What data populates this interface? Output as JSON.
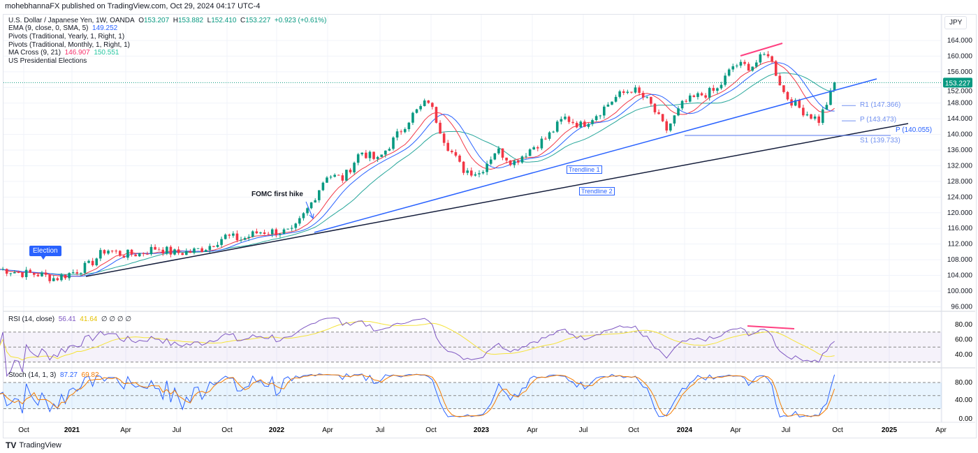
{
  "header": {
    "published": "mohebhannaFX published on TradingView.com, Oct 29, 2024 04:17 UTC-4"
  },
  "legend": {
    "symbol": "U.S. Dollar / Japanese Yen, 1W, OANDA",
    "o_label": "O",
    "o": "153.207",
    "h_label": "H",
    "h": "153.882",
    "l_label": "L",
    "l": "152.410",
    "c_label": "C",
    "c": "153.227",
    "change": "+0.923 (+0.61%)",
    "ema": "EMA (9, close, 0, SMA, 5)",
    "ema_val": "149.252",
    "pivots_yearly": "Pivots (Traditional, Yearly, 1, Right, 1)",
    "pivots_monthly": "Pivots (Traditional, Monthly, 1, Right, 1)",
    "ma_cross": "MA Cross (9, 21)",
    "ma_fast": "146.907",
    "ma_slow": "150.551",
    "elections": "US Presidential Elections"
  },
  "rsi_legend": {
    "name": "RSI (14, close)",
    "v1": "56.41",
    "v2": "41.64",
    "rest": "∅ ∅ ∅ ∅"
  },
  "stoch_legend": {
    "name": "Stoch (14, 1, 3)",
    "k": "87.27",
    "d": "69.82"
  },
  "currency": "JPY",
  "brand": "TradingView",
  "annotations": {
    "election": "Election",
    "fomc": "FOMC first hike",
    "trendline1": "Trendline 1",
    "trendline2": "Trendline 2",
    "r1": "R1 (147.366)",
    "p": "P (143.473)",
    "s1": "S1 (139.733)",
    "p_yearly": "P (140.055)"
  },
  "colors": {
    "up": "#089981",
    "down": "#f23645",
    "ema": "#2962ff",
    "ma_fast": "#f23645",
    "ma_slow": "#26a69a",
    "rsi": "#7e57c2",
    "rsi_ma": "#f5e33a",
    "stoch_k": "#2962ff",
    "stoch_d": "#f57c00",
    "pink": "#ff4081"
  },
  "chart_data": {
    "type": "candlestick",
    "title": "U.S. Dollar / Japanese Yen, 1W, OANDA",
    "monthly_close": {
      "months": [
        "2020-09",
        "2020-10",
        "2020-11",
        "2020-12",
        "2021-01",
        "2021-02",
        "2021-03",
        "2021-04",
        "2021-05",
        "2021-06",
        "2021-07",
        "2021-08",
        "2021-09",
        "2021-10",
        "2021-11",
        "2021-12",
        "2022-01",
        "2022-02",
        "2022-03",
        "2022-04",
        "2022-05",
        "2022-06",
        "2022-07",
        "2022-08",
        "2022-09",
        "2022-10",
        "2022-11",
        "2022-12",
        "2023-01",
        "2023-02",
        "2023-03",
        "2023-04",
        "2023-05",
        "2023-06",
        "2023-07",
        "2023-08",
        "2023-09",
        "2023-10",
        "2023-11",
        "2023-12",
        "2024-01",
        "2024-02",
        "2024-03",
        "2024-04",
        "2024-05",
        "2024-06",
        "2024-07",
        "2024-08",
        "2024-09",
        "2024-10"
      ],
      "values": [
        105.5,
        104.6,
        104.3,
        103.2,
        104.7,
        106.6,
        110.7,
        109.3,
        109.6,
        111.1,
        109.7,
        110.0,
        111.3,
        114.0,
        113.2,
        115.1,
        115.2,
        115.0,
        121.7,
        129.7,
        128.7,
        135.7,
        133.3,
        138.9,
        144.7,
        148.7,
        138.0,
        131.1,
        130.1,
        136.2,
        132.8,
        136.3,
        139.3,
        144.3,
        142.3,
        145.5,
        149.4,
        151.7,
        148.2,
        141.0,
        147.9,
        150.0,
        151.3,
        157.8,
        157.3,
        160.9,
        150.0,
        146.2,
        143.6,
        153.2
      ]
    },
    "last": 153.227,
    "yaxis_ticks": [
      "164.000",
      "160.000",
      "156.000",
      "152.000",
      "148.000",
      "144.000",
      "140.000",
      "136.000",
      "132.000",
      "128.000",
      "124.000",
      "120.000",
      "116.000",
      "112.000",
      "108.000",
      "104.000",
      "100.000",
      "96.000"
    ],
    "xaxis_ticks": [
      "Oct",
      "2021",
      "Apr",
      "Jul",
      "Oct",
      "2022",
      "Apr",
      "Jul",
      "Oct",
      "2023",
      "Apr",
      "Jul",
      "Oct",
      "2024",
      "Apr",
      "Jul",
      "Oct",
      "2025",
      "Apr"
    ],
    "rsi_ticks": [
      "80.00",
      "60.00",
      "40.00"
    ],
    "stoch_ticks": [
      "80.00",
      "40.00",
      "0.00"
    ],
    "ylim": [
      96,
      166
    ]
  }
}
